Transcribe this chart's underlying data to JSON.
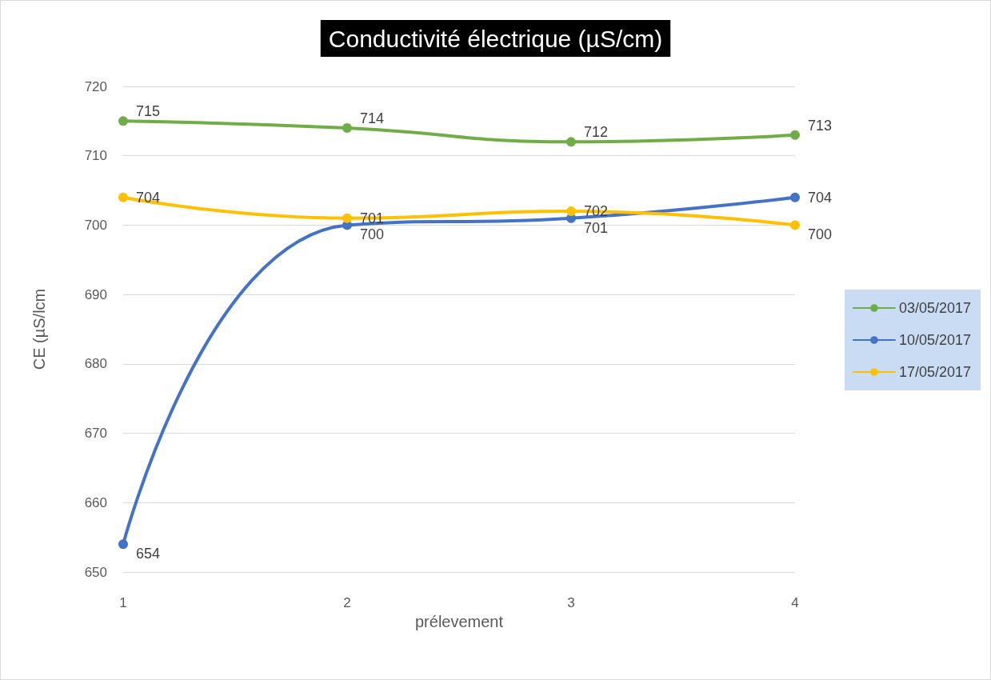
{
  "chart_data": {
    "type": "line",
    "title": "Conductivité électrique (µS/cm)",
    "xlabel": "prélevement",
    "ylabel": "CE (µS/lcm",
    "categories": [
      "1",
      "2",
      "3",
      "4"
    ],
    "series": [
      {
        "name": "03/05/2017",
        "color": "#70ad47",
        "values": [
          715,
          714,
          712,
          713
        ]
      },
      {
        "name": "10/05/2017",
        "color": "#4472c4",
        "values": [
          654,
          700,
          701,
          704
        ]
      },
      {
        "name": "17/05/2017",
        "color": "#ffc000",
        "values": [
          704,
          701,
          702,
          700
        ]
      }
    ],
    "ylim": [
      650,
      720
    ],
    "yticks": [
      650,
      660,
      670,
      680,
      690,
      700,
      710,
      720
    ],
    "grid": "y",
    "legend": "right",
    "marker": "circle",
    "line_style": "solid",
    "data_labels": true
  }
}
